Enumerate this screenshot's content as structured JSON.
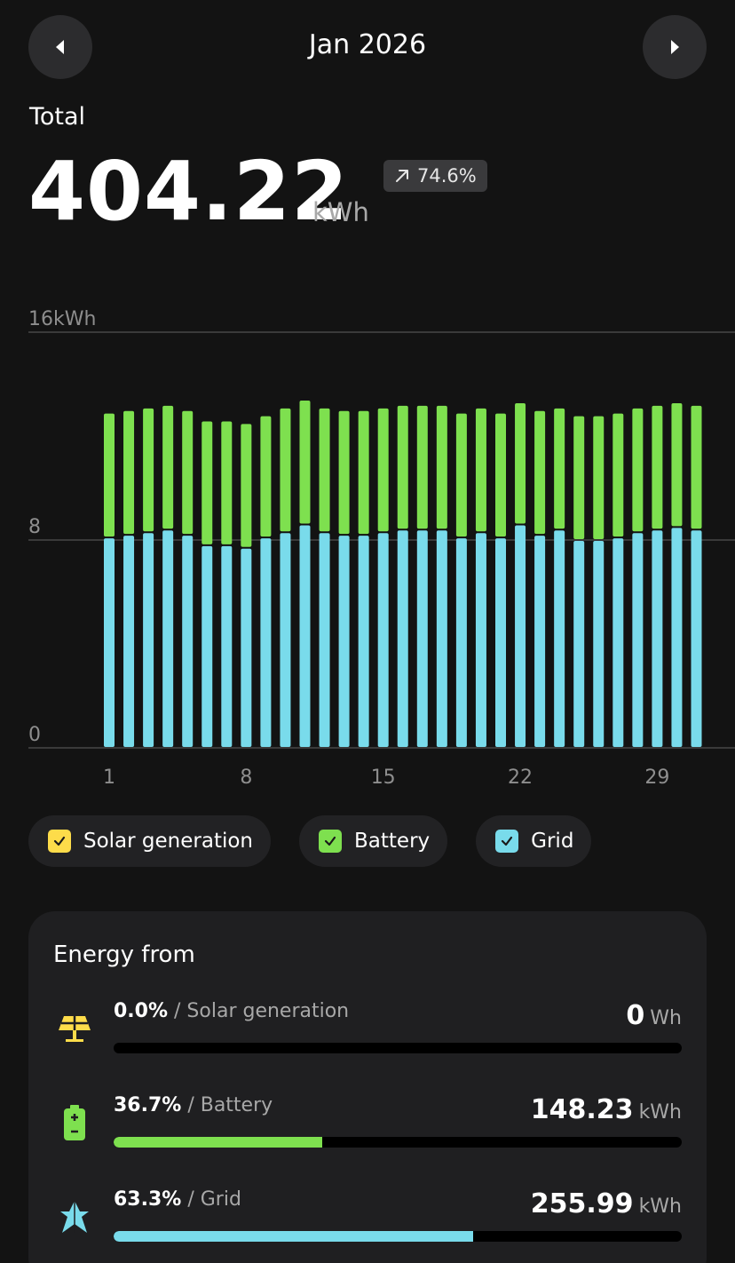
{
  "header": {
    "title": "Jan 2026",
    "prev_icon": "chevron-left-icon",
    "next_icon": "chevron-right-icon"
  },
  "summary": {
    "label": "Total",
    "value": "404.22",
    "unit": "kWh",
    "change": "74.6%",
    "change_icon": "arrow-up-right-icon"
  },
  "colors": {
    "solar": "#fddc4a",
    "battery": "#7ee04f",
    "grid": "#79dbeb",
    "background": "#131313"
  },
  "chart_data": {
    "type": "bar",
    "stacked": true,
    "x": [
      1,
      2,
      3,
      4,
      5,
      6,
      7,
      8,
      9,
      10,
      11,
      12,
      13,
      14,
      15,
      16,
      17,
      18,
      19,
      20,
      21,
      22,
      23,
      24,
      25,
      26,
      27,
      28,
      29,
      30,
      31
    ],
    "x_tick_labels": [
      "1",
      "8",
      "15",
      "22",
      "29"
    ],
    "y_tick_labels": [
      "16kWh",
      "8",
      "0"
    ],
    "ylim": [
      0,
      16
    ],
    "grid": true,
    "series": [
      {
        "name": "Grid",
        "color": "#79dbeb",
        "values": [
          8.1,
          8.2,
          8.3,
          8.4,
          8.2,
          7.8,
          7.8,
          7.7,
          8.1,
          8.3,
          8.6,
          8.3,
          8.2,
          8.2,
          8.3,
          8.4,
          8.4,
          8.4,
          8.1,
          8.3,
          8.1,
          8.6,
          8.2,
          8.4,
          8.0,
          8.0,
          8.1,
          8.3,
          8.4,
          8.5,
          8.4
        ]
      },
      {
        "name": "Battery",
        "color": "#7ee04f",
        "values": [
          4.8,
          4.8,
          4.8,
          4.8,
          4.8,
          4.8,
          4.8,
          4.8,
          4.7,
          4.8,
          4.8,
          4.8,
          4.8,
          4.8,
          4.8,
          4.8,
          4.8,
          4.8,
          4.8,
          4.8,
          4.8,
          4.7,
          4.8,
          4.7,
          4.8,
          4.8,
          4.8,
          4.8,
          4.8,
          4.8,
          4.8
        ]
      },
      {
        "name": "Solar generation",
        "color": "#fddc4a",
        "values": [
          0,
          0,
          0,
          0,
          0,
          0,
          0,
          0,
          0,
          0,
          0,
          0,
          0,
          0,
          0,
          0,
          0,
          0,
          0,
          0,
          0,
          0,
          0,
          0,
          0,
          0,
          0,
          0,
          0,
          0,
          0
        ]
      }
    ]
  },
  "legend": [
    {
      "label": "Solar generation",
      "color": "#fddc4a",
      "checked": true
    },
    {
      "label": "Battery",
      "color": "#7ee04f",
      "checked": true
    },
    {
      "label": "Grid",
      "color": "#79dbeb",
      "checked": true
    }
  ],
  "energy_from": {
    "title": "Energy from",
    "rows": [
      {
        "pct": "0.0%",
        "name": "Solar generation",
        "value": "0",
        "unit": "Wh",
        "fraction": 0.0,
        "color": "#fddc4a",
        "icon": "solar-panel-icon"
      },
      {
        "pct": "36.7%",
        "name": "Battery",
        "value": "148.23",
        "unit": "kWh",
        "fraction": 0.367,
        "color": "#7ee04f",
        "icon": "battery-icon"
      },
      {
        "pct": "63.3%",
        "name": "Grid",
        "value": "255.99",
        "unit": "kWh",
        "fraction": 0.633,
        "color": "#79dbeb",
        "icon": "grid-tower-icon"
      }
    ]
  }
}
